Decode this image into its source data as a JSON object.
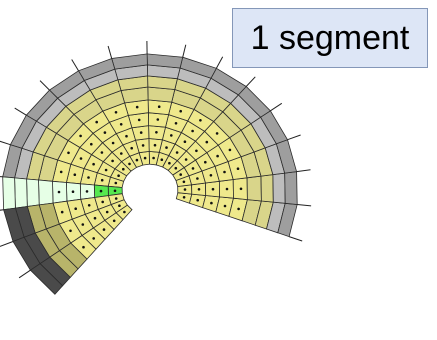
{
  "callout": {
    "text": "1 segment"
  },
  "diagram": {
    "icon": "annular-segmented-geometry",
    "colors": {
      "inner_face": "#efe98c",
      "side_face": "#d9d58a",
      "back_face": "#9e9e9e",
      "rim_dark": "#4a4a4a",
      "highlight_segment": "#e6ffe6",
      "highlight_inner": "#56e84f",
      "grid_line": "#2b2b2b",
      "callout_fill": "#dde6f6",
      "callout_border": "#8497b8"
    }
  }
}
